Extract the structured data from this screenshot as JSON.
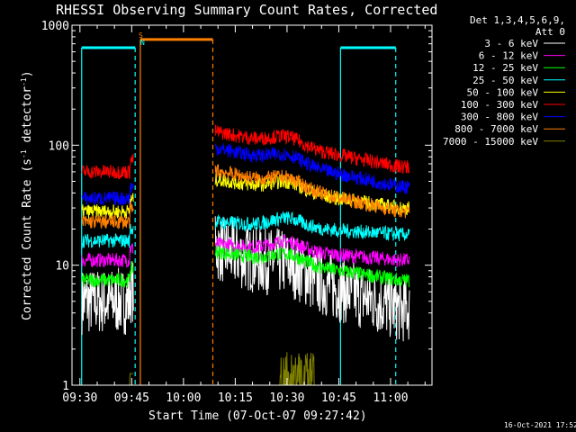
{
  "chart_data": {
    "type": "line",
    "title": "RHESSI Observing Summary Count Rates, Corrected",
    "xlabel": "Start Time (07-Oct-07 09:27:42)",
    "ylabel_main": "Corrected Count Rate (s",
    "ylabel_sup1": "-1",
    "ylabel_mid": " detector",
    "ylabel_sup2": "-1",
    "ylabel_end": ")",
    "y_scale": "log",
    "ylim": [
      1,
      1000
    ],
    "xlim_min": [
      9.43,
      11.17
    ],
    "y_ticks": [
      {
        "v": 1,
        "label": "1"
      },
      {
        "v": 10,
        "label": "10"
      },
      {
        "v": 100,
        "label": "100"
      },
      {
        "v": 1000,
        "label": "1000"
      }
    ],
    "x_ticks": [
      {
        "label": "09:30",
        "v": 570
      },
      {
        "label": "09:45",
        "v": 585
      },
      {
        "label": "10:00",
        "v": 600
      },
      {
        "label": "10:15",
        "v": 615
      },
      {
        "label": "10:30",
        "v": 630
      },
      {
        "label": "10:45",
        "v": 645
      },
      {
        "label": "11:00",
        "v": 660
      }
    ],
    "legend_header": [
      "Det 1,3,4,5,6,9,",
      "Att 0"
    ],
    "series": [
      {
        "name": "3 - 6 keV",
        "color": "#ffffff",
        "pre": 5,
        "post": 4.3,
        "peak": 14
      },
      {
        "name": "6 - 12 keV",
        "color": "#ff00ff",
        "pre": 11,
        "post": 11,
        "peak": 15
      },
      {
        "name": "12 - 25 keV",
        "color": "#00ff00",
        "pre": 7.5,
        "post": 7.5,
        "peak": 13
      },
      {
        "name": "25 - 50 keV",
        "color": "#00ffff",
        "pre": 16,
        "post": 18,
        "peak": 23
      },
      {
        "name": "50 - 100 keV",
        "color": "#ffff00",
        "pre": 28,
        "post": 30,
        "peak": 52
      },
      {
        "name": "100 - 300 keV",
        "color": "#ff0000",
        "pre": 60,
        "post": 66,
        "peak": 130
      },
      {
        "name": "300 - 800 keV",
        "color": "#0000ff",
        "pre": 36,
        "post": 45,
        "peak": 95
      },
      {
        "name": "800 - 7000 keV",
        "color": "#ff8000",
        "pre": 23,
        "post": 28,
        "peak": 62
      },
      {
        "name": "7000 - 15000 keV",
        "color": "#808000",
        "pre": 1,
        "post": 1,
        "peak": 1.9
      }
    ],
    "segments": [
      {
        "name": "SAA",
        "from_min": 587.5,
        "to_min": 608.5,
        "color": "#ff8000"
      },
      {
        "name": "Night",
        "from_min": 570.5,
        "to_min": 586.0,
        "color": "#00ffff"
      },
      {
        "name": "Night",
        "from_min": 645.5,
        "to_min": 661.5,
        "color": "#00ffff"
      }
    ],
    "flag_s": "S",
    "flag_n": "N",
    "footer_date": "16-Oct-2021 17:52"
  }
}
